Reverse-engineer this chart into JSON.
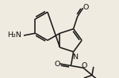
{
  "bg_color": "#f0ebe0",
  "bond_color": "#1a1a1a",
  "text_color": "#111111",
  "bond_lw": 1.15,
  "font_size": 6.8,
  "figsize": [
    1.5,
    0.99
  ],
  "dpi": 100,
  "xlim": [
    -0.05,
    1.48
  ],
  "ylim": [
    -0.05,
    0.97
  ],
  "BL": 0.185
}
